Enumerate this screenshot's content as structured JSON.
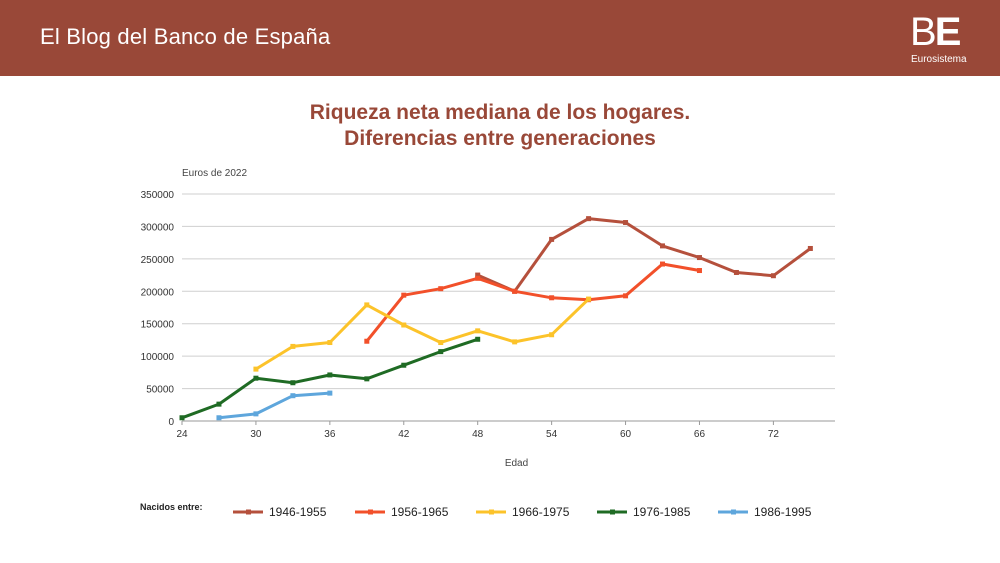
{
  "header": {
    "title": "El Blog del Banco de España",
    "logo_text_regular": "B",
    "logo_text_bold": "E",
    "logo_subtext": "Eurosistema"
  },
  "chart_data": {
    "type": "line",
    "title_lines": [
      "Riqueza neta mediana de los hogares.",
      "Diferencias entre generaciones"
    ],
    "unit_label": "Euros de 2022",
    "xlabel": "Edad",
    "legend_title": "Nacidos entre:",
    "x_ticks": [
      24,
      30,
      36,
      42,
      48,
      54,
      60,
      66,
      72
    ],
    "x_tick_labels": [
      "24",
      "30",
      "36",
      "42",
      "48",
      "54",
      "60",
      "66",
      "72"
    ],
    "xlim": [
      24,
      77
    ],
    "y_ticks": [
      0,
      50000,
      100000,
      150000,
      200000,
      250000,
      300000,
      350000
    ],
    "y_tick_labels": [
      "0",
      "50000",
      "100000",
      "150000",
      "200000",
      "250000",
      "300000",
      "350000"
    ],
    "ylim": [
      0,
      350000
    ],
    "grid": "horizontal",
    "series": [
      {
        "name": "1946-1955",
        "color": "#b5503c",
        "points": [
          [
            48,
            225000
          ],
          [
            51,
            200000
          ],
          [
            54,
            280000
          ],
          [
            57,
            312000
          ],
          [
            60,
            306000
          ],
          [
            63,
            270000
          ],
          [
            66,
            252000
          ],
          [
            69,
            229000
          ],
          [
            72,
            224000
          ],
          [
            75,
            266000
          ]
        ]
      },
      {
        "name": "1956-1965",
        "color": "#f2502a",
        "points": [
          [
            39,
            123000
          ],
          [
            42,
            194000
          ],
          [
            45,
            204000
          ],
          [
            48,
            220000
          ],
          [
            51,
            200000
          ],
          [
            54,
            190000
          ],
          [
            57,
            187000
          ],
          [
            60,
            193000
          ],
          [
            63,
            242000
          ],
          [
            66,
            232000
          ]
        ]
      },
      {
        "name": "1966-1975",
        "color": "#fcc32a",
        "points": [
          [
            30,
            80000
          ],
          [
            33,
            115000
          ],
          [
            36,
            121000
          ],
          [
            39,
            179000
          ],
          [
            42,
            148000
          ],
          [
            45,
            121000
          ],
          [
            48,
            139000
          ],
          [
            51,
            122000
          ],
          [
            54,
            133000
          ],
          [
            57,
            188000
          ]
        ]
      },
      {
        "name": "1976-1985",
        "color": "#1f6b24",
        "points": [
          [
            24,
            5000
          ],
          [
            27,
            26000
          ],
          [
            30,
            66000
          ],
          [
            33,
            59000
          ],
          [
            36,
            71000
          ],
          [
            39,
            65000
          ],
          [
            42,
            86000
          ],
          [
            45,
            107000
          ],
          [
            48,
            126000
          ]
        ]
      },
      {
        "name": "1986-1995",
        "color": "#5ea6dc",
        "points": [
          [
            27,
            5000
          ],
          [
            30,
            11000
          ],
          [
            33,
            39000
          ],
          [
            36,
            43000
          ]
        ]
      }
    ]
  }
}
